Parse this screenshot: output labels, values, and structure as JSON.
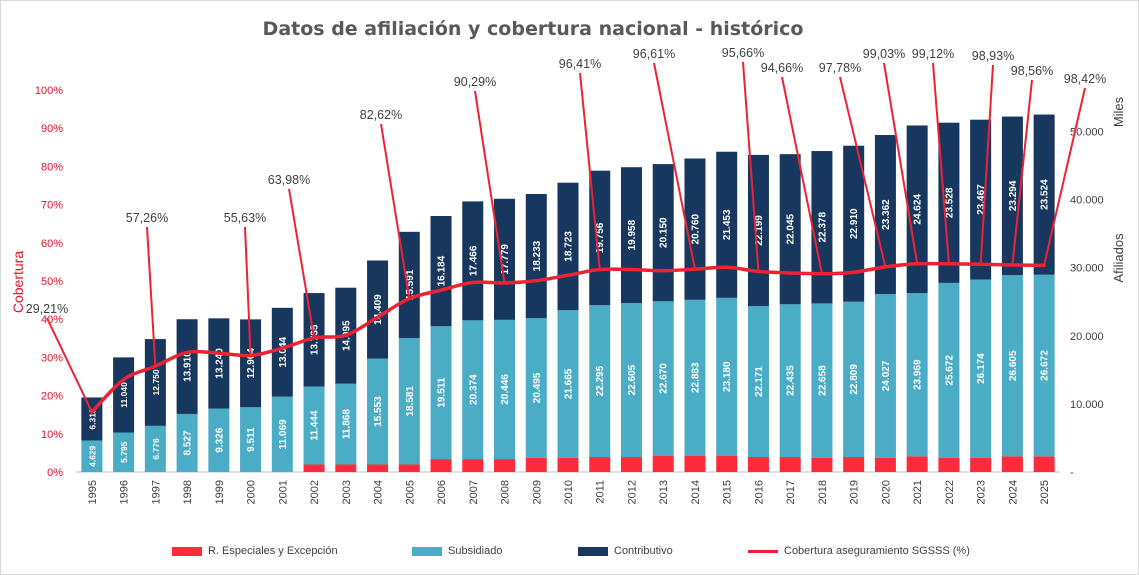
{
  "chart_data": {
    "type": "bar",
    "title": "Datos de afiliación y cobertura nacional - histórico",
    "y_left_label": "Cobertura",
    "y_right_label": "Afiliados",
    "y_right_unit": "Miles",
    "y_left_ticks": [
      "0%",
      "10%",
      "20%",
      "30%",
      "40%",
      "50%",
      "60%",
      "70%",
      "80%",
      "90%",
      "100%"
    ],
    "y_right_ticks": [
      "-",
      "10.000",
      "20.000",
      "30.000",
      "40.000",
      "50.000"
    ],
    "ylim_left": [
      0,
      100
    ],
    "ylim_right": [
      0,
      55000
    ],
    "categories": [
      "1995",
      "1996",
      "1997",
      "1998",
      "1999",
      "2000",
      "2001",
      "2002",
      "2003",
      "2004",
      "2005",
      "2006",
      "2007",
      "2008",
      "2009",
      "2010",
      "2011",
      "2012",
      "2013",
      "2014",
      "2015",
      "2016",
      "2017",
      "2018",
      "2019",
      "2020",
      "2021",
      "2022",
      "2023",
      "2024",
      "2025"
    ],
    "series": [
      {
        "name": "R. Especiales y Excepción",
        "color": "#ff2b3a",
        "values": [
          0,
          0,
          0,
          0,
          0,
          0,
          0,
          1100,
          1100,
          1100,
          1100,
          1900,
          1900,
          1900,
          2100,
          2100,
          2200,
          2200,
          2400,
          2400,
          2400,
          2200,
          2200,
          2100,
          2200,
          2100,
          2300,
          2100,
          2100,
          2300,
          2300
        ]
      },
      {
        "name": "Subsidiado",
        "color": "#4bacc6",
        "values": [
          4629,
          5795,
          6776,
          8527,
          9326,
          9511,
          11069,
          11444,
          11868,
          15553,
          18581,
          19511,
          20374,
          20446,
          20495,
          21665,
          22295,
          22605,
          22670,
          22883,
          23180,
          22171,
          22435,
          22658,
          22809,
          24027,
          23969,
          25672,
          26174,
          26605,
          26672
        ],
        "labels": [
          "4.629",
          "5.795",
          "6.776",
          "8.527",
          "9.326",
          "9.511",
          "11.069",
          "11.444",
          "11.868",
          "15.553",
          "18.581",
          "19.511",
          "20.374",
          "20.446",
          "20.495",
          "21.665",
          "22.295",
          "22.605",
          "22.670",
          "22.883",
          "23.180",
          "22.171",
          "22.435",
          "22.658",
          "22.809",
          "24.027",
          "23.969",
          "25.672",
          "26.174",
          "26.605",
          "26.672"
        ]
      },
      {
        "name": "Contributivo",
        "color": "#17375e",
        "values": [
          6318,
          11040,
          12750,
          13910,
          13240,
          12904,
          13044,
          13735,
          14095,
          14409,
          15591,
          16184,
          17466,
          17779,
          18233,
          18723,
          19756,
          19958,
          20150,
          20760,
          21453,
          22199,
          22045,
          22378,
          22910,
          23362,
          24624,
          23528,
          23467,
          23294,
          23524
        ],
        "labels": [
          "6.318",
          "11.040",
          "12.750",
          "13.910",
          "13.240",
          "12.904",
          "13.044",
          "13.735",
          "14.095",
          "14.409",
          "15.591",
          "16.184",
          "17.466",
          "17.779",
          "18.233",
          "18.723",
          "19.756",
          "19.958",
          "20.150",
          "20.760",
          "21.453",
          "22.199",
          "22.045",
          "22.378",
          "22.910",
          "23.362",
          "24.624",
          "23.528",
          "23.467",
          "23.294",
          "23.524"
        ]
      }
    ],
    "line": {
      "name": "Cobertura aseguramiento SGSSS (%)",
      "color": "#ee2233",
      "values": [
        15.7,
        24.2,
        27.7,
        31.3,
        31.1,
        30.5,
        32.4,
        35.1,
        35.8,
        40.5,
        45.4,
        47.6,
        49.6,
        49.5,
        50.1,
        51.5,
        53.0,
        53.0,
        52.7,
        53.1,
        53.6,
        52.5,
        52.1,
        51.9,
        52.3,
        53.7,
        54.5,
        54.5,
        54.4,
        54.2,
        54.1
      ],
      "annotations": [
        {
          "index": 0,
          "text": "29,21%"
        },
        {
          "index": 2,
          "text": "57,26%"
        },
        {
          "index": 5,
          "text": "55,63%"
        },
        {
          "index": 7,
          "text": "63,98%"
        },
        {
          "index": 10,
          "text": "82,62%"
        },
        {
          "index": 13,
          "text": "90,29%"
        },
        {
          "index": 16,
          "text": "96,41%"
        },
        {
          "index": 19,
          "text": "96,61%"
        },
        {
          "index": 21,
          "text": "95,66%"
        },
        {
          "index": 23,
          "text": "94,66%"
        },
        {
          "index": 25,
          "text": "97,78%"
        },
        {
          "index": 26,
          "text": "99,03%"
        },
        {
          "index": 27,
          "text": "99,12%"
        },
        {
          "index": 28,
          "text": "98,93%"
        },
        {
          "index": 29,
          "text": "98,56%"
        },
        {
          "index": 30,
          "text": "98,42%"
        }
      ]
    },
    "legend_position": "bottom",
    "grid": false
  }
}
